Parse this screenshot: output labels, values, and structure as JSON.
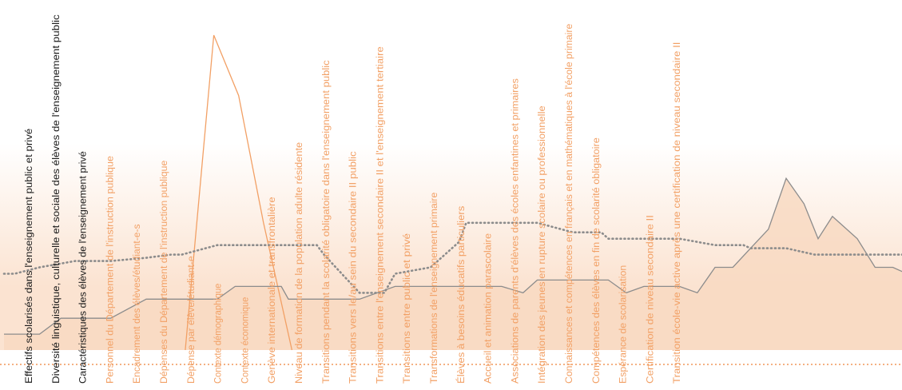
{
  "chart_data": {
    "type": "line",
    "colors": {
      "accent": "#f2a065",
      "area_fill": "#f8d9c2",
      "gray_line": "#8c8c8c",
      "dotted_line": "#8c8c8c",
      "bottom_dotted": "#f4b183",
      "dark_text": "#1a1a1a"
    },
    "categories": [
      "Effectifs scolarisés dans l'enseignement public et privé",
      "Diversité linguistique, culturelle et sociale des élèves de l'enseignement public",
      "Caractéristiques des élèves de l'enseignement privé",
      "Personnel du Département de l'instruction publique",
      "Encadrement des élèves/étudiant-e-s",
      "Dépenses du Département de l'instruction publique",
      "Dépense par élève/étudiant-e",
      "Contexte démographique",
      "Contexte économique",
      "Genève internationale et transfrontalière",
      "Niveau de formation de la population adulte résidente",
      "Transitions pendant la scolarité obligatoire dans l'enseignement public",
      "Transitions vers le/au sein du secondaire II public",
      "Transitions entre l'enseignement secondaire II et l'enseignement tertiaire",
      "Transitions entre public et privé",
      "Transformations de l'enseignement primaire",
      "Élèves à besoins éducatifs particuliers",
      "Accueil et animation parascolaire",
      "Associations de parents d'élèves des écoles enfantines et primaires",
      "Intégration des jeunes en rupture scolaire ou professionnelle",
      "Connaissances et compétences en français et en mathématiques à l'école primaire",
      "Compétences des élèves en fin de scolarité obligatoire",
      "Espérance de scolarisation",
      "Certification de niveau secondaire II",
      "Transition école-vie active après une certification de niveau secondaire II"
    ],
    "category_label_color": [
      "dark",
      "dark",
      "dark",
      "accent",
      "accent",
      "accent",
      "accent",
      "accent",
      "accent",
      "accent",
      "accent",
      "accent",
      "accent",
      "accent",
      "accent",
      "accent",
      "accent",
      "accent",
      "accent",
      "accent",
      "accent",
      "accent",
      "accent",
      "accent",
      "accent"
    ],
    "ylim": [
      0,
      100
    ],
    "series": [
      {
        "style": "orange-spike-line",
        "x": [
          5.1,
          5.9,
          6.6,
          7.3,
          8.1
        ],
        "values": [
          0,
          99,
          80,
          40,
          0
        ]
      },
      {
        "style": "gray-line-filled-area",
        "x": [
          0,
          1,
          1.6,
          2,
          3,
          4,
          4.5,
          5,
          6,
          6.5,
          7,
          7.8,
          8,
          9,
          10,
          11,
          11.6,
          12,
          13,
          14,
          14.6,
          15,
          15.5,
          16,
          16.5,
          17,
          17.5,
          18,
          18.5,
          19,
          19.5,
          20,
          20.5,
          21,
          21.5,
          22,
          22.5,
          22.9,
          23.3,
          24,
          24.5,
          25,
          25.4
        ],
        "values": [
          5,
          5,
          10,
          10,
          10,
          16,
          16,
          16,
          16,
          20,
          20,
          20,
          16,
          16,
          16,
          20,
          20,
          20,
          20,
          20,
          18,
          22,
          22,
          22,
          22,
          22,
          18,
          20,
          20,
          20,
          18,
          26,
          26,
          32,
          38,
          54,
          46,
          35,
          42,
          35,
          26,
          26,
          24
        ]
      },
      {
        "style": "gray-dotted-line",
        "x": [
          0,
          0.3,
          1,
          2,
          3,
          4,
          4.7,
          5,
          6,
          7,
          8,
          8.8,
          9,
          10,
          10.7,
          11,
          12,
          12.8,
          13,
          13.3,
          14,
          14.8,
          15,
          16,
          16.8,
          17,
          18,
          18.8,
          19,
          20,
          20.8,
          21,
          22,
          22.8,
          23,
          24,
          25,
          25.4
        ],
        "values": [
          24,
          24,
          26,
          28,
          28,
          29,
          30,
          30,
          33,
          33,
          33,
          33,
          30,
          18,
          18,
          24,
          26,
          34,
          40,
          40,
          40,
          40,
          40,
          37,
          37,
          35,
          35,
          35,
          35,
          33,
          33,
          32,
          32,
          30,
          30,
          30,
          30,
          30
        ]
      }
    ]
  }
}
